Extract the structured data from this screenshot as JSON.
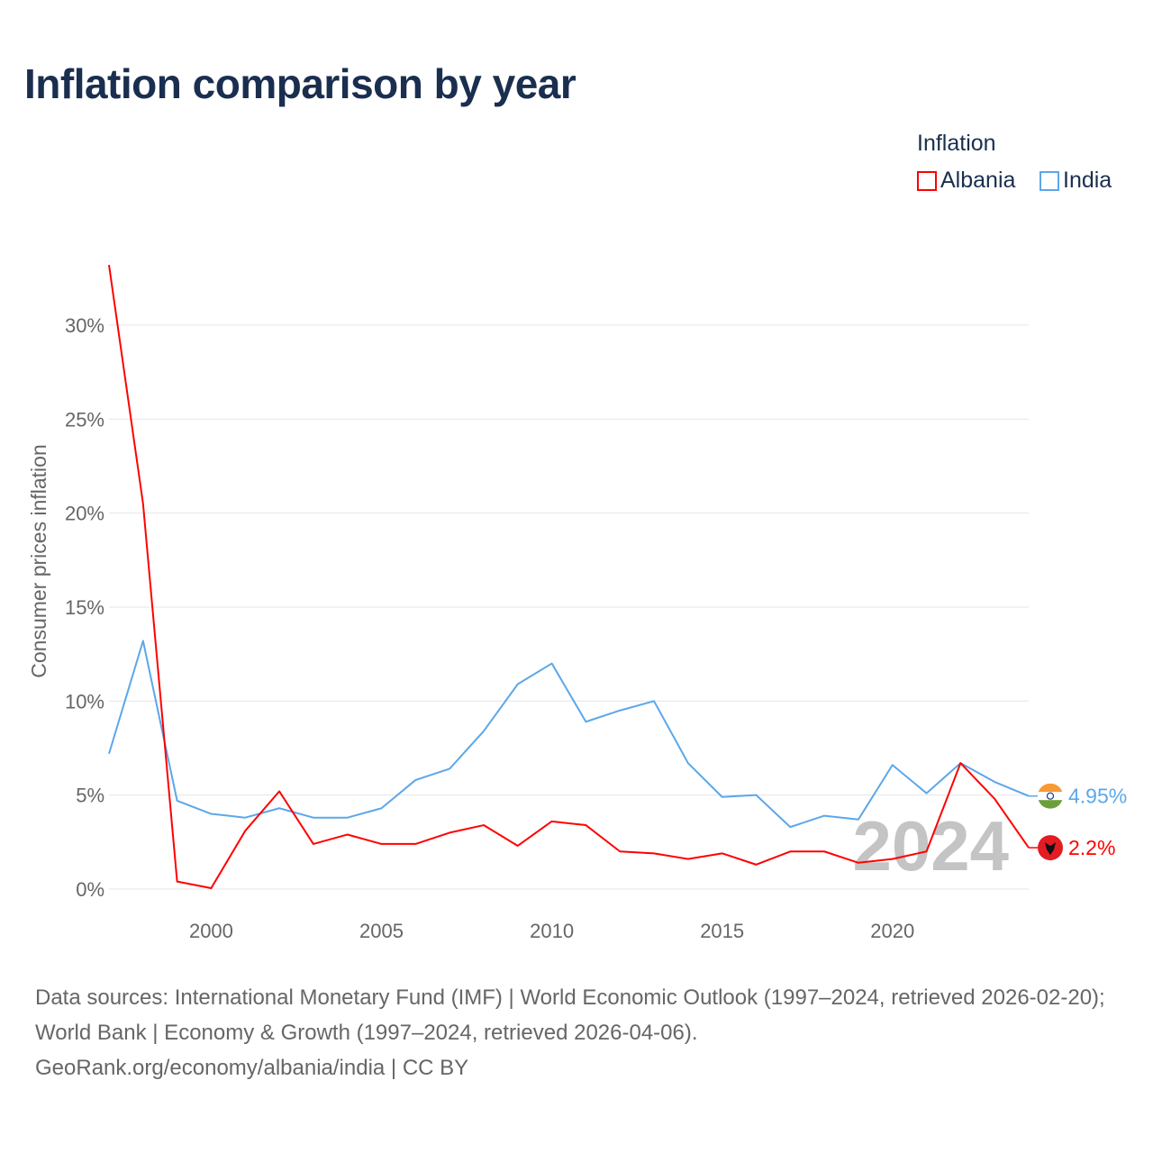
{
  "chart_data": {
    "type": "line",
    "title": "Inflation comparison by year",
    "ylabel": "Consumer prices inflation",
    "xlabel": "",
    "legend_title": "Inflation",
    "legend_position": "top-right",
    "x": [
      1997,
      1998,
      1999,
      2000,
      2001,
      2002,
      2003,
      2004,
      2005,
      2006,
      2007,
      2008,
      2009,
      2010,
      2011,
      2012,
      2013,
      2014,
      2015,
      2016,
      2017,
      2018,
      2019,
      2020,
      2021,
      2022,
      2023,
      2024
    ],
    "series": [
      {
        "name": "Albania",
        "color": "#ff0000",
        "end_label": "2.2%",
        "values": [
          33.2,
          20.5,
          0.4,
          0.05,
          3.1,
          5.2,
          2.4,
          2.9,
          2.4,
          2.4,
          3.0,
          3.4,
          2.3,
          3.6,
          3.4,
          2.0,
          1.9,
          1.6,
          1.9,
          1.3,
          2.0,
          2.0,
          1.4,
          1.6,
          2.0,
          6.7,
          4.8,
          2.2
        ]
      },
      {
        "name": "India",
        "color": "#5ba7ea",
        "end_label": "4.95%",
        "values": [
          7.2,
          13.2,
          4.7,
          4.0,
          3.8,
          4.3,
          3.8,
          3.8,
          4.3,
          5.8,
          6.4,
          8.4,
          10.9,
          12.0,
          8.9,
          9.5,
          10.0,
          6.7,
          4.9,
          5.0,
          3.3,
          3.9,
          3.7,
          6.6,
          5.1,
          6.7,
          5.7,
          4.95
        ]
      }
    ],
    "xlim": [
      1997,
      2024
    ],
    "ylim": [
      0,
      33
    ],
    "xticks": [
      2000,
      2005,
      2010,
      2015,
      2020
    ],
    "xtick_labels": [
      "2000",
      "2005",
      "2010",
      "2015",
      "2020"
    ],
    "yticks": [
      0,
      5,
      10,
      15,
      20,
      25,
      30
    ],
    "ytick_labels": [
      "0%",
      "5%",
      "10%",
      "15%",
      "20%",
      "25%",
      "30%"
    ],
    "grid": true,
    "year_watermark": "2024"
  },
  "footer": {
    "line1": "Data sources: International Monetary Fund (IMF) | World Economic Outlook (1997–2024, retrieved 2026-02-20); World Bank | Economy & Growth (1997–2024, retrieved 2026-04-06).",
    "line2": "GeoRank.org/economy/albania/india | CC BY"
  }
}
